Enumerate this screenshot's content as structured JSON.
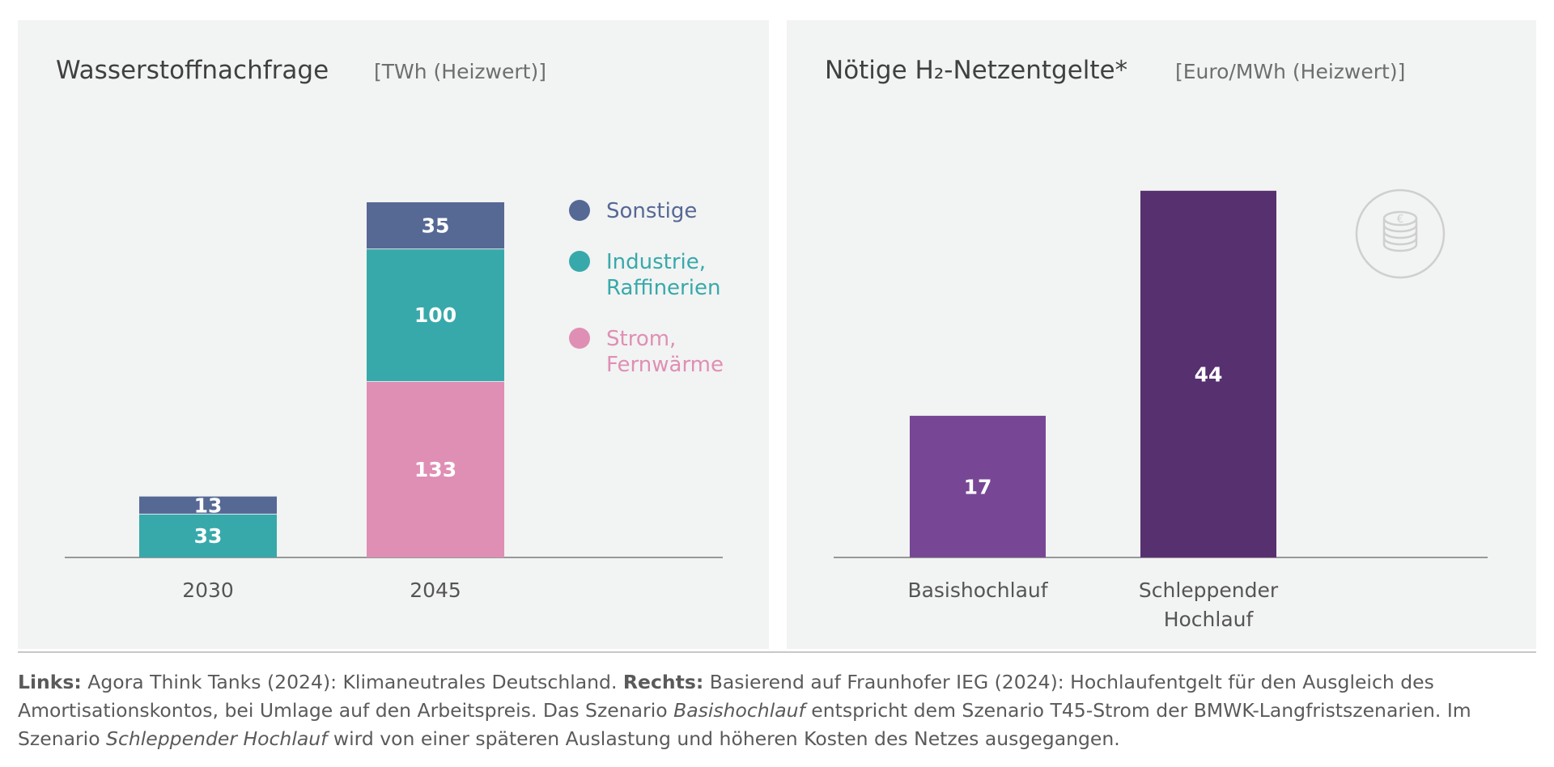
{
  "left_panel": {
    "title": "Wasserstoffnachfrage",
    "unit": "[TWh (Heizwert)]"
  },
  "right_panel": {
    "title": "Nötige H₂-Netzentgelte*",
    "unit": "[Euro/MWh (Heizwert)]"
  },
  "chart_data": [
    {
      "type": "bar",
      "stacked": true,
      "categories": [
        "2030",
        "2045"
      ],
      "series": [
        {
          "name": "Strom, Fernwärme",
          "values": [
            0,
            133
          ],
          "color": "#df8fb4",
          "legend_lines": [
            "Strom,",
            "Fernwärme"
          ]
        },
        {
          "name": "Industrie, Raffinerien",
          "values": [
            33,
            100
          ],
          "color": "#38a9aa",
          "legend_lines": [
            "Industrie,",
            "Raffinerien"
          ]
        },
        {
          "name": "Sonstige",
          "values": [
            13,
            35
          ],
          "color": "#566894",
          "legend_lines": [
            "Sonstige"
          ]
        }
      ],
      "legend_order": [
        2,
        1,
        0
      ],
      "legend_placement": "right",
      "grid": false
    },
    {
      "type": "bar",
      "categories": [
        "Basishochlauf",
        "Schleppender Hochlauf"
      ],
      "category_lines": [
        [
          "Basishochlauf"
        ],
        [
          "Schleppender",
          "Hochlauf"
        ]
      ],
      "values": [
        17,
        44
      ],
      "colors": [
        "#774795",
        "#57306f"
      ],
      "grid": false
    }
  ],
  "icons": {
    "coin": "euro-coin-stack-icon"
  },
  "footnote": {
    "p1_bold": "Links:",
    "p1": " Agora Think Tanks (2024): Klimaneutrales Deutschland. ",
    "p2_bold": "Rechts:",
    "p2": " Basierend auf Fraunhofer IEG (2024): Hochlaufentgelt für den Ausgleich des Amortisationskontos, bei Umlage auf den Arbeitspreis. Das Szenario ",
    "p3_italic": "Basishochlauf",
    "p3": " entspricht dem Szenario T45-Strom der BMWK-Langfristszenarien. Im Szenario ",
    "p4_italic": "Schleppender Hochlauf",
    "p4": " wird von einer späteren Auslastung und höheren Kosten des Netzes ausgegangen."
  }
}
